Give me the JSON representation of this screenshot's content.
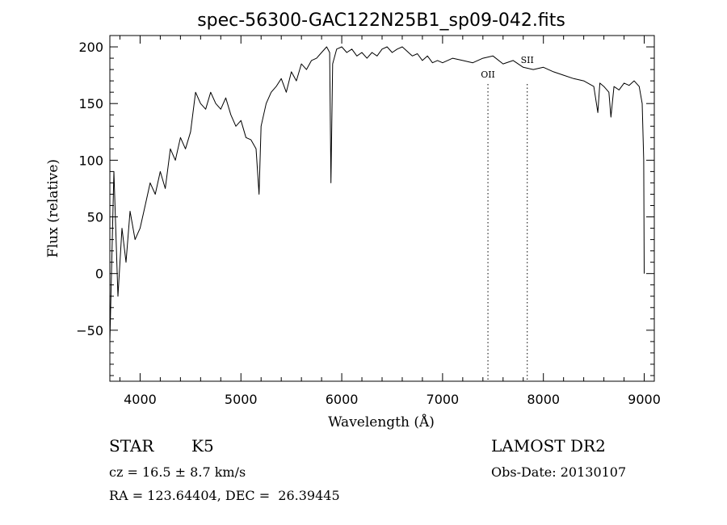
{
  "chart_data": {
    "type": "line",
    "title": "spec-56300-GAC122N25B1_sp09-042.fits",
    "xlabel": "Wavelength (Å)",
    "ylabel": "Flux (relative)",
    "xlim": [
      3700,
      9100
    ],
    "ylim": [
      -95,
      210
    ],
    "xticks": [
      4000,
      5000,
      6000,
      7000,
      8000,
      9000
    ],
    "xtick_labels": [
      "4000",
      "5000",
      "6000",
      "7000",
      "8000",
      "9000"
    ],
    "yticks": [
      -50,
      0,
      50,
      100,
      150,
      200
    ],
    "ytick_labels": [
      "−50",
      "0",
      "50",
      "100",
      "150",
      "200"
    ],
    "grid": false,
    "series": [
      {
        "color": "#000000",
        "x": [
          3700,
          3740,
          3780,
          3820,
          3860,
          3900,
          3950,
          4000,
          4050,
          4100,
          4150,
          4200,
          4250,
          4300,
          4350,
          4400,
          4450,
          4500,
          4550,
          4600,
          4650,
          4700,
          4750,
          4800,
          4850,
          4900,
          4950,
          5000,
          5050,
          5100,
          5150,
          5180,
          5200,
          5250,
          5300,
          5350,
          5400,
          5450,
          5500,
          5550,
          5600,
          5650,
          5700,
          5750,
          5800,
          5850,
          5880,
          5893,
          5910,
          5950,
          6000,
          6050,
          6100,
          6150,
          6200,
          6250,
          6300,
          6350,
          6400,
          6450,
          6500,
          6550,
          6600,
          6650,
          6700,
          6750,
          6800,
          6850,
          6900,
          6950,
          7000,
          7100,
          7200,
          7300,
          7400,
          7500,
          7600,
          7700,
          7800,
          7900,
          8000,
          8100,
          8200,
          8300,
          8400,
          8500,
          8540,
          8560,
          8600,
          8650,
          8670,
          8700,
          8750,
          8800,
          8850,
          8900,
          8950,
          8980,
          8995,
          9000
        ],
        "y": [
          -60,
          90,
          -20,
          40,
          10,
          55,
          30,
          40,
          60,
          80,
          70,
          90,
          75,
          110,
          100,
          120,
          110,
          125,
          160,
          150,
          145,
          160,
          150,
          145,
          155,
          140,
          130,
          135,
          120,
          118,
          110,
          70,
          130,
          150,
          160,
          165,
          172,
          160,
          178,
          170,
          185,
          180,
          188,
          190,
          195,
          200,
          195,
          80,
          185,
          198,
          200,
          195,
          198,
          192,
          195,
          190,
          195,
          192,
          198,
          200,
          195,
          198,
          200,
          196,
          192,
          194,
          188,
          192,
          186,
          188,
          186,
          190,
          188,
          186,
          190,
          192,
          185,
          188,
          182,
          180,
          182,
          178,
          175,
          172,
          170,
          165,
          142,
          168,
          165,
          160,
          138,
          165,
          162,
          168,
          166,
          170,
          165,
          150,
          100,
          0
        ]
      }
    ],
    "annotations": [
      {
        "label": "OII",
        "x": 7450
      },
      {
        "label": "SII",
        "x": 7840
      }
    ]
  },
  "info": {
    "class_label": "STAR",
    "subclass": "K5",
    "survey": "LAMOST DR2",
    "cz": "cz = 16.5 ± 8.7 km/s",
    "obs_date": "Obs-Date: 20130107",
    "coords": "RA = 123.64404, DEC =  26.39445"
  }
}
